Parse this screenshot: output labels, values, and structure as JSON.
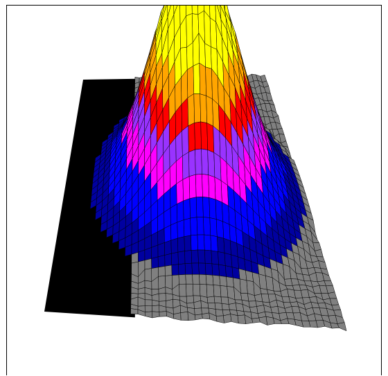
{
  "chart_data": {
    "type": "surface",
    "title": "",
    "xlabel": "",
    "ylabel": "",
    "zlabel": "",
    "grid": false,
    "legend": "none",
    "shading": "faceted",
    "colormap": {
      "shadow": "#000000",
      "base": "#808080",
      "low": "#0000a0",
      "mid_low": "#0000ff",
      "mid": "#ff00ff",
      "mid_high": "#9933ff",
      "high": "#ff0000",
      "higher": "#ffa500",
      "top": "#ffff00",
      "peak": "#ffffff"
    },
    "surface": {
      "grid_size": 42,
      "peak_center": [
        0.55,
        0.48
      ],
      "peak_sigma": 0.155,
      "base_level": 0.0,
      "peak_height": 1.0
    }
  }
}
